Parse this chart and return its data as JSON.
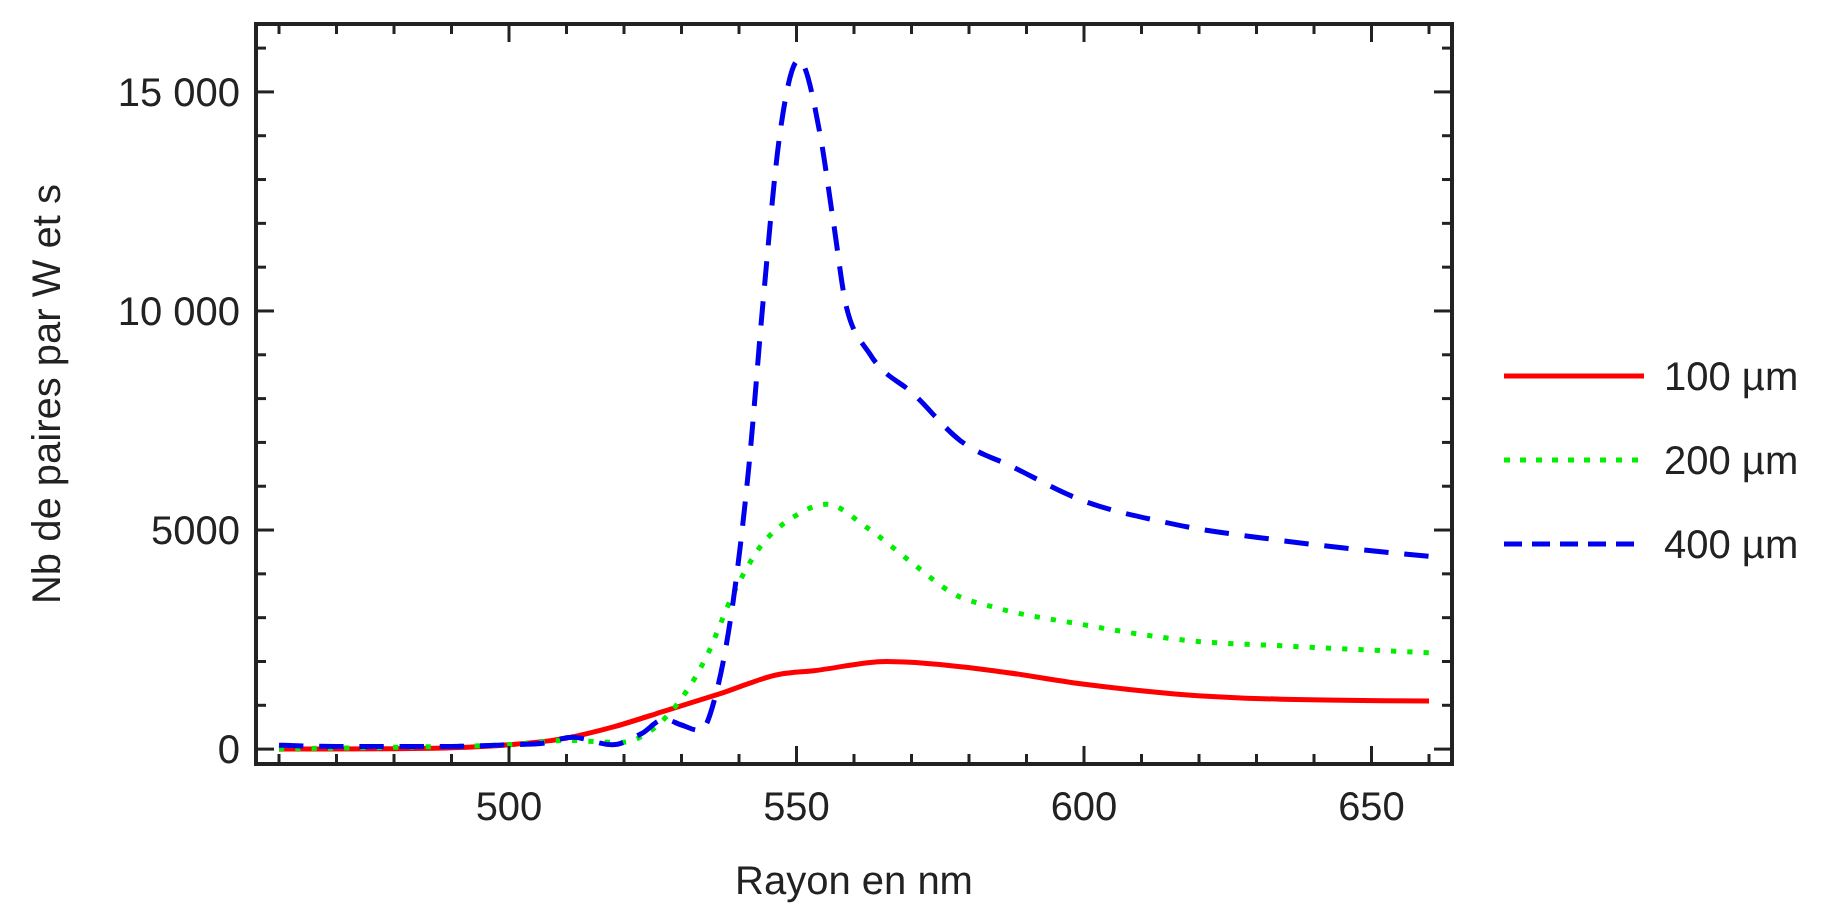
{
  "chart_data": {
    "type": "line",
    "xlabel": "Rayon en nm",
    "ylabel": "Nb de paires par W et s",
    "xlim": [
      456,
      664
    ],
    "ylim": [
      -340,
      16550
    ],
    "xticks": [
      {
        "value": 460,
        "label": null
      },
      {
        "value": 470,
        "label": null
      },
      {
        "value": 480,
        "label": null
      },
      {
        "value": 490,
        "label": null
      },
      500,
      {
        "value": 510,
        "label": null
      },
      {
        "value": 520,
        "label": null
      },
      {
        "value": 530,
        "label": null
      },
      {
        "value": 540,
        "label": null
      },
      550,
      {
        "value": 560,
        "label": null
      },
      {
        "value": 570,
        "label": null
      },
      {
        "value": 580,
        "label": null
      },
      {
        "value": 590,
        "label": null
      },
      600,
      {
        "value": 610,
        "label": null
      },
      {
        "value": 620,
        "label": null
      },
      {
        "value": 630,
        "label": null
      },
      {
        "value": 640,
        "label": null
      },
      650,
      {
        "value": 660,
        "label": null
      }
    ],
    "yticks": [
      0,
      {
        "value": 1000,
        "label": null
      },
      {
        "value": 2000,
        "label": null
      },
      {
        "value": 3000,
        "label": null
      },
      {
        "value": 4000,
        "label": null
      },
      5000,
      {
        "value": 6000,
        "label": null
      },
      {
        "value": 7000,
        "label": null
      },
      {
        "value": 8000,
        "label": null
      },
      {
        "value": 9000,
        "label": null
      },
      {
        "value": 10000,
        "label": "10 000"
      },
      {
        "value": 11000,
        "label": null
      },
      {
        "value": 12000,
        "label": null
      },
      {
        "value": 13000,
        "label": null
      },
      {
        "value": 14000,
        "label": null
      },
      {
        "value": 15000,
        "label": "15 000"
      },
      {
        "value": 16000,
        "label": null
      }
    ],
    "grid": false,
    "legend": "right",
    "series": [
      {
        "name": "100 µm",
        "color": "#ff0000",
        "line_style": "solid",
        "x": [
          460,
          480,
          490,
          500,
          510,
          518,
          527.3,
          536.6,
          547.1,
          553,
          565.7,
          584.3,
          599.4,
          615.8,
          634.4,
          660
        ],
        "values": [
          0,
          10,
          30,
          100,
          250,
          500,
          880,
          1260,
          1710,
          1790,
          2000,
          1790,
          1490,
          1260,
          1140,
          1100
        ]
      },
      {
        "name": "200 µm",
        "color": "#00ee00",
        "line_style": "dotted",
        "x": [
          460,
          480,
          500,
          510,
          519.2,
          527.3,
          534.3,
          539,
          543.6,
          549.4,
          555.3,
          562.2,
          570.4,
          577.4,
          584.3,
          599.4,
          618,
          635.5,
          660
        ],
        "values": [
          10,
          40,
          100,
          200,
          150,
          730,
          2100,
          3540,
          4600,
          5290,
          5590,
          5060,
          4220,
          3540,
          3240,
          2850,
          2480,
          2350,
          2200
        ]
      },
      {
        "name": "400 µm",
        "color": "#0000ee",
        "line_style": "dashed",
        "x": [
          460,
          470,
          480,
          490,
          500,
          505,
          511,
          518,
          523,
          527,
          530,
          533.3,
          536,
          539,
          541.7,
          544.2,
          547.1,
          550.4,
          554.1,
          556.4,
          558.7,
          562.8,
          570.4,
          578.5,
          587.8,
          598.3,
          615.8,
          634.4,
          660
        ],
        "values": [
          90,
          60,
          60,
          60,
          100,
          120,
          270,
          100,
          350,
          680,
          550,
          420,
          1260,
          3390,
          6430,
          10230,
          14030,
          15730,
          14030,
          12050,
          10080,
          9010,
          8100,
          7040,
          6430,
          5750,
          5130,
          4760,
          4400
        ]
      }
    ]
  }
}
